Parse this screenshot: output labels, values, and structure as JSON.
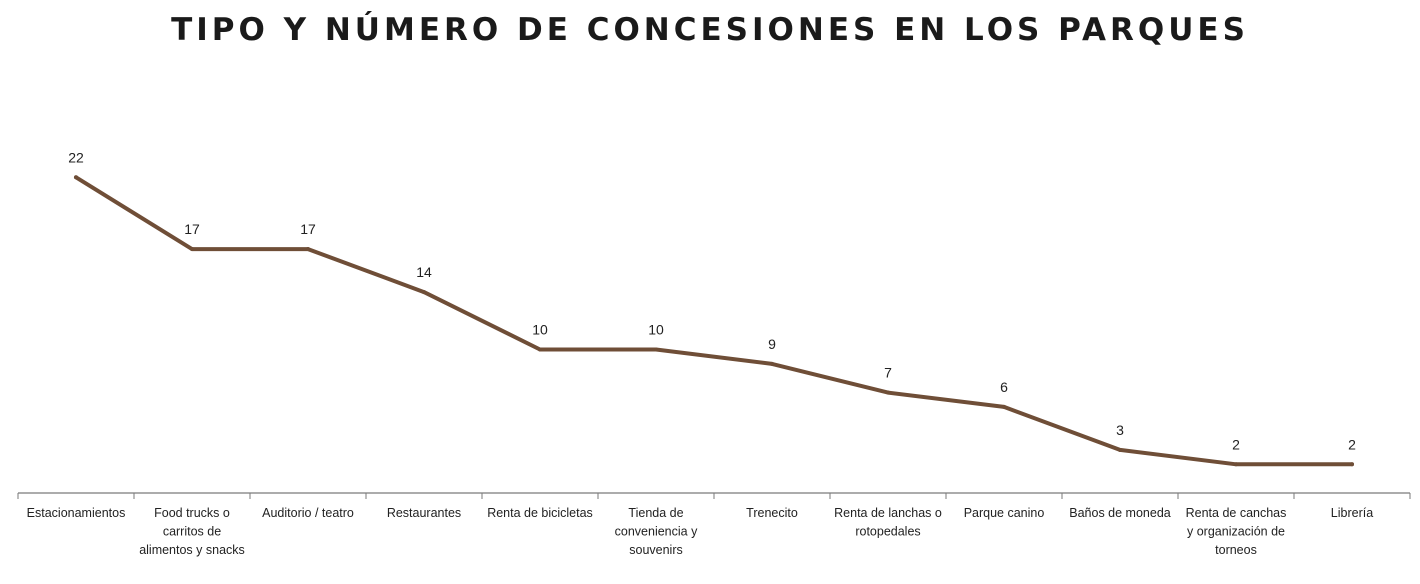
{
  "chart_data": {
    "type": "line",
    "title": "TIPO Y NÚMERO DE CONCESIONES EN LOS PARQUES",
    "xlabel": "",
    "ylabel": "",
    "ylim": [
      0,
      24
    ],
    "grid": false,
    "line_color": "#6f4e37",
    "categories": [
      [
        "Estacionamientos"
      ],
      [
        "Food trucks o",
        "carritos de",
        "alimentos y snacks"
      ],
      [
        "Auditorio / teatro"
      ],
      [
        "Restaurantes"
      ],
      [
        "Renta de bicicletas"
      ],
      [
        "Tienda de",
        "conveniencia y",
        "souvenirs"
      ],
      [
        "Trenecito"
      ],
      [
        "Renta de lanchas o",
        "rotopedales"
      ],
      [
        "Parque canino"
      ],
      [
        "Baños de moneda"
      ],
      [
        "Renta de canchas",
        "y organización de",
        "torneos"
      ],
      [
        "Librería"
      ]
    ],
    "values": [
      22,
      17,
      17,
      14,
      10,
      10,
      9,
      7,
      6,
      3,
      2,
      2
    ]
  }
}
